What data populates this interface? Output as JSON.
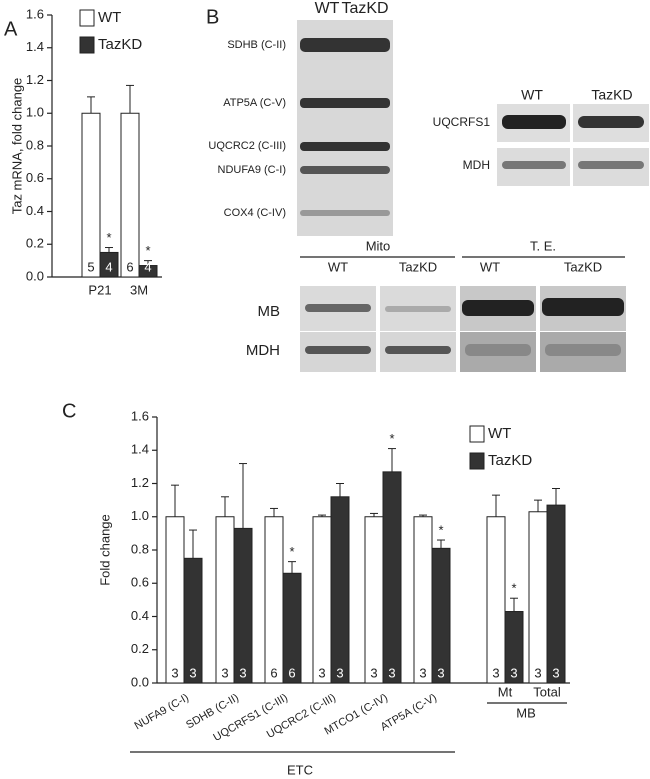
{
  "panels": [
    "A",
    "B",
    "C"
  ],
  "chart_data": [
    {
      "type": "bar",
      "ylabel": "Taz mRNA, fold change",
      "categories": [
        "P21",
        "3M"
      ],
      "series": [
        {
          "name": "WT",
          "color": "#ffffff",
          "values": [
            1.0,
            1.0
          ],
          "errors": [
            0.1,
            0.17
          ],
          "n": [
            5,
            6
          ],
          "markers": [
            null,
            null
          ]
        },
        {
          "name": "TazKD",
          "color": "#333333",
          "values": [
            0.15,
            0.07
          ],
          "errors": [
            0.03,
            0.03
          ],
          "n": [
            4,
            4
          ],
          "markers": [
            "*",
            "*"
          ]
        }
      ],
      "ylim": [
        0,
        1.6
      ],
      "yticks": [
        {
          "value": 0,
          "label": "0.0"
        },
        0.2,
        0.4,
        0.6,
        0.8,
        {
          "value": 1,
          "label": "1.0"
        },
        1.2,
        1.4,
        1.6
      ],
      "legend": "upper left"
    },
    {
      "type": "bar",
      "ylabel": "Fold change",
      "categories": [
        "NUFA9 (C-I)",
        "SDHB (C-II)",
        "UQCRFS1 (C-III)",
        "UQCRC2 (C-III)",
        "MTCO1 (C-IV)",
        "ATP5A (C-V)",
        "Mt",
        "Total"
      ],
      "groups": [
        "ETC",
        "MB"
      ],
      "series": [
        {
          "name": "WT",
          "color": "#ffffff",
          "values": [
            1.0,
            1.0,
            1.0,
            1.0,
            1.0,
            1.0,
            1.0,
            1.03
          ],
          "errors": [
            0.19,
            0.12,
            0.05,
            0.01,
            0.02,
            0.01,
            0.13,
            0.07
          ],
          "n": [
            3,
            3,
            6,
            3,
            3,
            3,
            3,
            3
          ],
          "markers": [
            null,
            null,
            null,
            null,
            null,
            null,
            null,
            null
          ]
        },
        {
          "name": "TazKD",
          "color": "#333333",
          "values": [
            0.75,
            0.93,
            0.66,
            1.12,
            1.27,
            0.81,
            0.43,
            1.07
          ],
          "errors": [
            0.17,
            0.39,
            0.07,
            0.08,
            0.14,
            0.05,
            0.08,
            0.1
          ],
          "n": [
            3,
            3,
            6,
            3,
            3,
            3,
            3,
            3
          ],
          "markers": [
            null,
            null,
            "*",
            null,
            "*",
            "*",
            "*",
            null
          ]
        }
      ],
      "ylim": [
        0,
        1.6
      ],
      "yticks": [
        {
          "value": 0,
          "label": "0.0"
        },
        0.2,
        0.4,
        0.6,
        0.8,
        {
          "value": 1,
          "label": "1.0"
        },
        1.2,
        1.4,
        1.6
      ],
      "legend": "upper right"
    }
  ],
  "blots": {
    "main": {
      "lanes": [
        "WT",
        "TazKD"
      ],
      "bands": [
        "SDHB (C-II)",
        "ATP5A (C-V)",
        "UQCRC2 (C-III)",
        "NDUFA9 (C-I)",
        "COX4 (C-IV)"
      ]
    },
    "right": {
      "lanes": [
        "WT",
        "TazKD"
      ],
      "bands": [
        "UQCRFS1",
        "MDH"
      ]
    },
    "bottom": {
      "groups": [
        "Mito",
        "T. E."
      ],
      "lanes": [
        "WT",
        "TazKD",
        "WT",
        "TazKD"
      ],
      "bands": [
        "MB",
        "MDH"
      ]
    }
  }
}
